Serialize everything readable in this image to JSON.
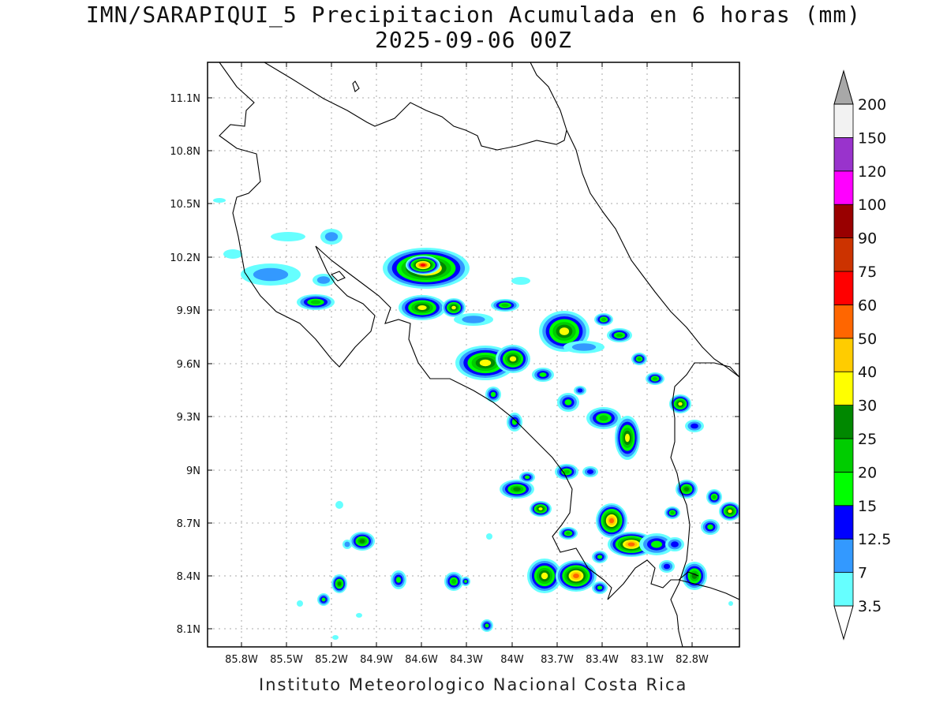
{
  "title_line1": "IMN/SARAPIQUI_5 Precipitacion Acumulada en 6 horas (mm)",
  "title_line2": "2025-09-06 00Z",
  "footer": "Instituto Meteorologico Nacional Costa Rica",
  "lon_ticks": [
    "85.8W",
    "85.5W",
    "85.2W",
    "84.9W",
    "84.6W",
    "84.3W",
    "84W",
    "83.7W",
    "83.4W",
    "83.1W",
    "82.8W"
  ],
  "lat_ticks": [
    "11.1N",
    "10.8N",
    "10.5N",
    "10.2N",
    "9.9N",
    "9.6N",
    "9.3N",
    "9N",
    "8.7N",
    "8.4N",
    "8.1N"
  ],
  "colorbar": {
    "levels": [
      "3.5",
      "7",
      "12.5",
      "15",
      "20",
      "25",
      "30",
      "40",
      "50",
      "60",
      "75",
      "90",
      "100",
      "120",
      "150",
      "200"
    ],
    "colors": [
      "#ffffff",
      "#66ffff",
      "#3399ff",
      "#0000ff",
      "#00ff00",
      "#00cc00",
      "#008800",
      "#ffff00",
      "#ffcc00",
      "#ff6600",
      "#ff0000",
      "#cc3300",
      "#990000",
      "#ff00ff",
      "#9933cc",
      "#f2f2f2",
      "#a8a8a8"
    ]
  },
  "precip_colors": {
    "c35": "#66ffff",
    "c7": "#3399ff",
    "c125": "#0000ff",
    "c15": "#00ff00",
    "c20": "#00cc00",
    "c25": "#008800",
    "c30": "#ffff00",
    "c40": "#ffcc00",
    "c50": "#ff6600",
    "c60": "#ff0000"
  }
}
